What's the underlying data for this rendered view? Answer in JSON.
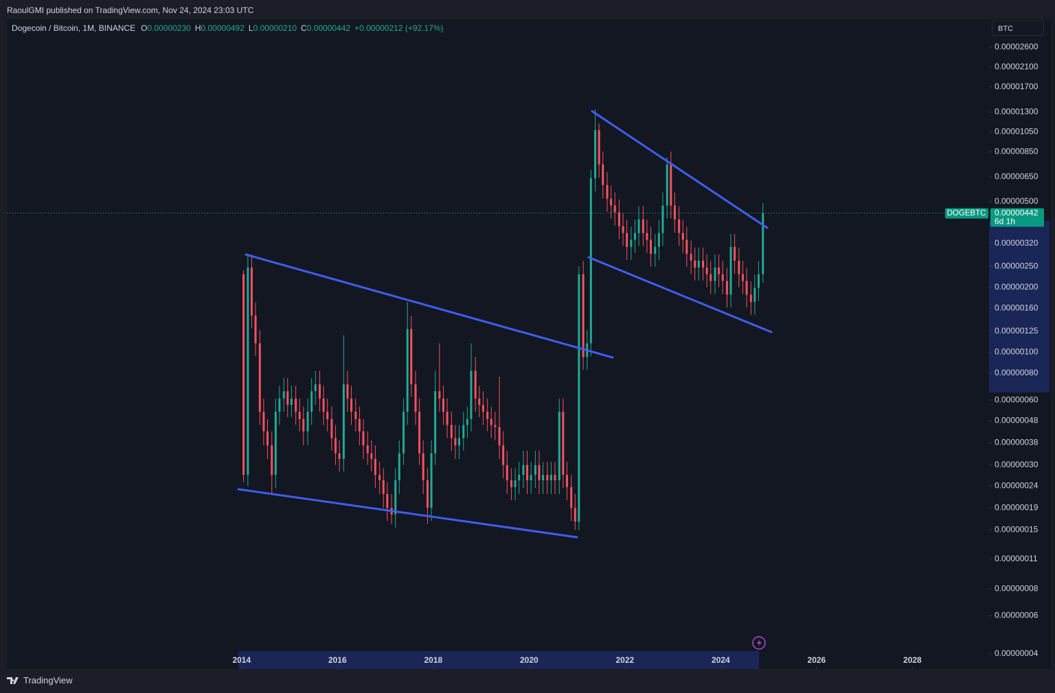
{
  "header": {
    "text": "RaoulGMI published on TradingView.com, Nov 24, 2024 23:03 UTC"
  },
  "legend": {
    "symbol": "Dogecoin / Bitcoin, 1M, BINANCE",
    "o_key": "O",
    "o": "0.00000230",
    "h_key": "H",
    "h": "0.00000492",
    "l_key": "L",
    "l": "0.00000210",
    "c_key": "C",
    "c": "0.00000442",
    "change": "+0.00000212 (+92.17%)"
  },
  "currency": "BTC",
  "footer": {
    "brand": "TradingView"
  },
  "chart_data": {
    "type": "candlestick",
    "log_scale": true,
    "up_color": "#22ab94",
    "down_color": "#f7525f",
    "xlim": [
      2009.1,
      2029.6
    ],
    "ylim": [
      3.4e-08,
      3.5e-05
    ],
    "xticks": [
      2014,
      2016,
      2018,
      2020,
      2022,
      2024,
      2026,
      2028
    ],
    "yticks": [
      {
        "value": 2.6e-05,
        "label": "0.00002600"
      },
      {
        "value": 2.1e-05,
        "label": "0.00002100"
      },
      {
        "value": 1.7e-05,
        "label": "0.00001700"
      },
      {
        "value": 1.3e-05,
        "label": "0.00001300"
      },
      {
        "value": 1.05e-05,
        "label": "0.00001050"
      },
      {
        "value": 8.5e-06,
        "label": "0.00000850"
      },
      {
        "value": 6.5e-06,
        "label": "0.00000650"
      },
      {
        "value": 5e-06,
        "label": "0.00000500"
      },
      {
        "value": 3.2e-06,
        "label": "0.00000320"
      },
      {
        "value": 2.5e-06,
        "label": "0.00000250"
      },
      {
        "value": 2e-06,
        "label": "0.00000200"
      },
      {
        "value": 1.6e-06,
        "label": "0.00000160"
      },
      {
        "value": 1.25e-06,
        "label": "0.00000125"
      },
      {
        "value": 1e-06,
        "label": "0.00000100"
      },
      {
        "value": 8e-07,
        "label": "0.00000080"
      },
      {
        "value": 6e-07,
        "label": "0.00000060"
      },
      {
        "value": 4.8e-07,
        "label": "0.00000048"
      },
      {
        "value": 3.8e-07,
        "label": "0.00000038"
      },
      {
        "value": 3e-07,
        "label": "0.00000030"
      },
      {
        "value": 2.4e-07,
        "label": "0.00000024"
      },
      {
        "value": 1.9e-07,
        "label": "0.00000019"
      },
      {
        "value": 1.5e-07,
        "label": "0.00000015"
      },
      {
        "value": 1.1e-07,
        "label": "0.00000011"
      },
      {
        "value": 8e-08,
        "label": "0.00000008"
      },
      {
        "value": 6e-08,
        "label": "0.00000006"
      },
      {
        "value": 4e-08,
        "label": "0.00000004"
      }
    ],
    "price_label": {
      "symbol": "DOGEBTC",
      "value": {
        "value": 4.42e-06,
        "label": "0.00000442"
      },
      "countdown": "6d 1h"
    },
    "x": [
      2014.04,
      2014.13,
      2014.21,
      2014.29,
      2014.38,
      2014.46,
      2014.54,
      2014.63,
      2014.71,
      2014.79,
      2014.88,
      2014.96,
      2015.04,
      2015.13,
      2015.21,
      2015.29,
      2015.38,
      2015.46,
      2015.54,
      2015.63,
      2015.71,
      2015.79,
      2015.88,
      2015.96,
      2016.04,
      2016.13,
      2016.21,
      2016.29,
      2016.38,
      2016.46,
      2016.54,
      2016.63,
      2016.71,
      2016.79,
      2016.88,
      2016.96,
      2017.04,
      2017.13,
      2017.21,
      2017.29,
      2017.38,
      2017.46,
      2017.54,
      2017.63,
      2017.71,
      2017.79,
      2017.88,
      2017.96,
      2018.04,
      2018.13,
      2018.21,
      2018.29,
      2018.38,
      2018.46,
      2018.54,
      2018.63,
      2018.71,
      2018.79,
      2018.88,
      2018.96,
      2019.04,
      2019.13,
      2019.21,
      2019.29,
      2019.38,
      2019.46,
      2019.54,
      2019.63,
      2019.71,
      2019.79,
      2019.88,
      2019.96,
      2020.04,
      2020.13,
      2020.21,
      2020.29,
      2020.38,
      2020.46,
      2020.54,
      2020.63,
      2020.71,
      2020.79,
      2020.88,
      2020.96,
      2021.04,
      2021.13,
      2021.21,
      2021.29,
      2021.38,
      2021.46,
      2021.54,
      2021.63,
      2021.71,
      2021.79,
      2021.88,
      2021.96,
      2022.04,
      2022.13,
      2022.21,
      2022.29,
      2022.38,
      2022.46,
      2022.54,
      2022.63,
      2022.71,
      2022.79,
      2022.88,
      2022.96,
      2023.04,
      2023.13,
      2023.21,
      2023.29,
      2023.38,
      2023.46,
      2023.54,
      2023.63,
      2023.71,
      2023.79,
      2023.88,
      2023.96,
      2024.04,
      2024.13,
      2024.21,
      2024.29,
      2024.38,
      2024.46,
      2024.54,
      2024.63,
      2024.71,
      2024.79,
      2024.88
    ],
    "open": [
      2.3e-06,
      2.7e-07,
      2.47e-06,
      1.48e-06,
      1.1e-06,
      5.3e-07,
      4.3e-07,
      3.7e-07,
      2.7e-07,
      5.3e-07,
      6.1e-07,
      6.6e-07,
      5.7e-07,
      6.1e-07,
      5.3e-07,
      4.9e-07,
      4.3e-07,
      5.3e-07,
      6.6e-07,
      7.1e-07,
      6.1e-07,
      5.3e-07,
      4.9e-07,
      4e-07,
      3.4e-07,
      3.2e-07,
      7.1e-07,
      6.1e-07,
      5.3e-07,
      4.9e-07,
      4.3e-07,
      3.7e-07,
      3.4e-07,
      3.2e-07,
      2.7e-07,
      2.55e-07,
      2.2e-07,
      1.9e-07,
      1.77e-07,
      2.55e-07,
      3.4e-07,
      5.3e-07,
      1.28e-06,
      7.1e-07,
      5.3e-07,
      3.4e-07,
      2.55e-07,
      1.9e-07,
      3.4e-07,
      6.6e-07,
      6.1e-07,
      5.3e-07,
      4.6e-07,
      4e-07,
      3.7e-07,
      4e-07,
      4.6e-07,
      4.9e-07,
      8.2e-07,
      6.1e-07,
      5.7e-07,
      5.3e-07,
      4.9e-07,
      4.6e-07,
      4.5e-07,
      3.7e-07,
      3e-07,
      2.55e-07,
      2.37e-07,
      2.55e-07,
      2.7e-07,
      3e-07,
      2.55e-07,
      2.7e-07,
      3e-07,
      2.55e-07,
      2.7e-07,
      2.55e-07,
      2.7e-07,
      2.55e-07,
      5.3e-07,
      2.7e-07,
      2.37e-07,
      1.9e-07,
      1.64e-07,
      2.3e-06,
      9.5e-07,
      1.1e-06,
      6.41e-06,
      1.072e-05,
      7.42e-06,
      5.96e-06,
      5.15e-06,
      4.79e-06,
      4.45e-06,
      3.84e-06,
      3.57e-06,
      3.08e-06,
      3.32e-06,
      3.57e-06,
      4.13e-06,
      3.57e-06,
      3.32e-06,
      2.86e-06,
      3.08e-06,
      3.57e-06,
      4.79e-06,
      7.42e-06,
      4.79e-06,
      4.13e-06,
      3.57e-06,
      3.32e-06,
      2.86e-06,
      2.66e-06,
      2.47e-06,
      2.66e-06,
      2.47e-06,
      2.3e-06,
      2.14e-06,
      2.47e-06,
      2.3e-06,
      2.14e-06,
      1.85e-06,
      3.08e-06,
      2.66e-06,
      2.3e-06,
      2.14e-06,
      1.85e-06,
      1.71e-06,
      1.99e-06,
      2.3e-06
    ],
    "high": [
      2.4e-06,
      2.8e-06,
      2.84e-06,
      1.7e-06,
      1.27e-06,
      6.1e-07,
      4.9e-07,
      4.3e-07,
      6.1e-07,
      7e-07,
      7.6e-07,
      7.6e-07,
      7e-07,
      7e-07,
      6.1e-07,
      5.6e-07,
      6.1e-07,
      7.6e-07,
      8.2e-07,
      8.2e-07,
      7e-07,
      6.1e-07,
      5.6e-07,
      4.6e-07,
      3.9e-07,
      1.2e-06,
      8.2e-07,
      7e-07,
      6.1e-07,
      5.6e-07,
      4.9e-07,
      4.3e-07,
      3.9e-07,
      3.7e-07,
      3.1e-07,
      2.9e-07,
      2.5e-07,
      2.2e-07,
      2.9e-07,
      3.9e-07,
      6.1e-07,
      1.71e-06,
      1.47e-06,
      8.2e-07,
      6.1e-07,
      3.9e-07,
      2.9e-07,
      3.9e-07,
      8.2e-07,
      1.1e-06,
      7e-07,
      6.1e-07,
      5.3e-07,
      4.6e-07,
      4.6e-07,
      5.3e-07,
      5.6e-07,
      1.1e-06,
      9.5e-07,
      7e-07,
      6.6e-07,
      6.1e-07,
      5.6e-07,
      5.3e-07,
      7.7e-07,
      4.3e-07,
      3.5e-07,
      2.9e-07,
      2.9e-07,
      3.1e-07,
      3.5e-07,
      3.5e-07,
      3.1e-07,
      3.5e-07,
      3.5e-07,
      3.1e-07,
      3.1e-07,
      3.1e-07,
      3.1e-07,
      6.1e-07,
      6.1e-07,
      3.1e-07,
      2.7e-07,
      2.2e-07,
      2.5e-06,
      2.65e-06,
      1.27e-06,
      7e-06,
      1.34e-05,
      1.15e-05,
      8.53e-06,
      6.85e-06,
      5.92e-06,
      5.51e-06,
      5.12e-06,
      4.42e-06,
      4.11e-06,
      3.82e-06,
      4.11e-06,
      4.75e-06,
      4.75e-06,
      4.11e-06,
      3.82e-06,
      3.54e-06,
      4.11e-06,
      5.51e-06,
      8e-06,
      8.53e-06,
      5.51e-06,
      4.75e-06,
      4.11e-06,
      3.82e-06,
      3.29e-06,
      3.06e-06,
      3.06e-06,
      3.06e-06,
      2.84e-06,
      2.65e-06,
      2.84e-06,
      2.84e-06,
      2.65e-06,
      2.46e-06,
      3.54e-06,
      3.54e-06,
      3.06e-06,
      2.65e-06,
      2.46e-06,
      2.13e-06,
      2.29e-06,
      2.65e-06,
      4.92e-06
    ],
    "low": [
      2.5e-07,
      2.4e-07,
      1.29e-06,
      9.6e-07,
      4.6e-07,
      3.7e-07,
      3.2e-07,
      2.2e-07,
      2.35e-07,
      4.6e-07,
      5.3e-07,
      5e-07,
      5e-07,
      4.6e-07,
      4.3e-07,
      3.7e-07,
      3.7e-07,
      4.6e-07,
      5.7e-07,
      5.3e-07,
      4.6e-07,
      4.3e-07,
      3.5e-07,
      3e-07,
      2.8e-07,
      2.8e-07,
      5.3e-07,
      4.6e-07,
      4.3e-07,
      3.7e-07,
      3.2e-07,
      3e-07,
      2.8e-07,
      2.35e-07,
      2.2e-07,
      1.9e-07,
      1.65e-07,
      1.6e-07,
      1.54e-07,
      2.2e-07,
      3e-07,
      4.6e-07,
      6.2e-07,
      4.6e-07,
      3e-07,
      2.2e-07,
      1.6e-07,
      1.65e-07,
      3e-07,
      5.3e-07,
      4.6e-07,
      4e-07,
      3.5e-07,
      3.2e-07,
      3.2e-07,
      3.5e-07,
      4e-07,
      4.3e-07,
      5.3e-07,
      5e-07,
      4.6e-07,
      4.3e-07,
      4e-07,
      3.9e-07,
      3.2e-07,
      2.6e-07,
      2.2e-07,
      2.06e-07,
      2.06e-07,
      2.2e-07,
      2.35e-07,
      2.2e-07,
      2.2e-07,
      2.35e-07,
      2.2e-07,
      2.2e-07,
      2.2e-07,
      2.2e-07,
      2.2e-07,
      2.2e-07,
      2.35e-07,
      2.06e-07,
      1.65e-07,
      1.5e-07,
      1.5e-07,
      8.3e-07,
      8.3e-07,
      9.6e-07,
      5.58e-06,
      6.45e-06,
      5.18e-06,
      4.48e-06,
      4.17e-06,
      3.87e-06,
      3.34e-06,
      3.11e-06,
      2.68e-06,
      2.68e-06,
      2.89e-06,
      3.11e-06,
      3.11e-06,
      2.89e-06,
      2.49e-06,
      2.49e-06,
      2.68e-06,
      3.11e-06,
      4.17e-06,
      4.17e-06,
      3.59e-06,
      3.11e-06,
      2.89e-06,
      2.49e-06,
      2.31e-06,
      2.15e-06,
      2.15e-06,
      2.15e-06,
      2e-06,
      1.86e-06,
      1.86e-06,
      2e-06,
      1.86e-06,
      1.61e-06,
      1.61e-06,
      2.31e-06,
      2e-06,
      1.86e-06,
      1.61e-06,
      1.49e-06,
      1.49e-06,
      1.73e-06,
      2.1e-06
    ],
    "close": [
      2.7e-07,
      2.47e-06,
      1.48e-06,
      1.1e-06,
      5.3e-07,
      4.3e-07,
      3.7e-07,
      2.7e-07,
      5.3e-07,
      6.1e-07,
      6.6e-07,
      5.7e-07,
      6.1e-07,
      5.3e-07,
      4.9e-07,
      4.3e-07,
      5.3e-07,
      6.6e-07,
      7.1e-07,
      6.1e-07,
      5.3e-07,
      4.9e-07,
      4e-07,
      3.4e-07,
      3.2e-07,
      7.1e-07,
      6.1e-07,
      5.3e-07,
      4.9e-07,
      4.3e-07,
      3.7e-07,
      3.4e-07,
      3.2e-07,
      2.7e-07,
      2.55e-07,
      2.2e-07,
      1.9e-07,
      1.77e-07,
      2.55e-07,
      3.4e-07,
      5.3e-07,
      1.28e-06,
      7.1e-07,
      5.3e-07,
      3.4e-07,
      2.55e-07,
      1.9e-07,
      3.4e-07,
      6.6e-07,
      6.1e-07,
      5.3e-07,
      4.6e-07,
      4e-07,
      3.7e-07,
      4e-07,
      4.6e-07,
      4.9e-07,
      8.2e-07,
      6.1e-07,
      5.7e-07,
      5.3e-07,
      4.9e-07,
      4.6e-07,
      4.5e-07,
      3.7e-07,
      3e-07,
      2.55e-07,
      2.37e-07,
      2.55e-07,
      2.7e-07,
      3e-07,
      2.55e-07,
      2.7e-07,
      3e-07,
      2.55e-07,
      2.7e-07,
      2.55e-07,
      2.7e-07,
      2.55e-07,
      5.3e-07,
      2.7e-07,
      2.37e-07,
      1.9e-07,
      1.64e-07,
      2.3e-06,
      9.5e-07,
      1.1e-06,
      6.41e-06,
      1.072e-05,
      7.42e-06,
      5.96e-06,
      5.15e-06,
      4.79e-06,
      4.45e-06,
      3.84e-06,
      3.57e-06,
      3.08e-06,
      3.32e-06,
      3.57e-06,
      4.13e-06,
      3.57e-06,
      3.32e-06,
      2.86e-06,
      3.08e-06,
      3.57e-06,
      4.79e-06,
      7.42e-06,
      4.79e-06,
      4.13e-06,
      3.57e-06,
      3.32e-06,
      2.86e-06,
      2.66e-06,
      2.47e-06,
      2.66e-06,
      2.47e-06,
      2.3e-06,
      2.14e-06,
      2.47e-06,
      2.3e-06,
      2.14e-06,
      1.85e-06,
      3.08e-06,
      2.66e-06,
      2.3e-06,
      2.14e-06,
      1.85e-06,
      1.71e-06,
      1.99e-06,
      2.3e-06,
      4.42e-06
    ]
  }
}
